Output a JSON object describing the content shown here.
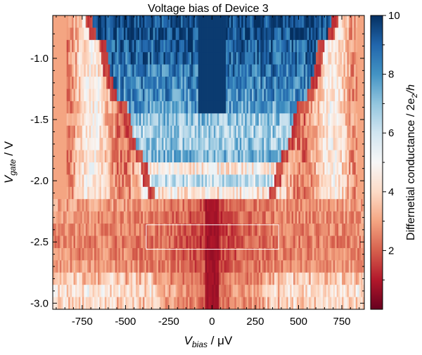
{
  "chart_data": {
    "type": "heatmap",
    "title": "Voltage bias of Device 3",
    "xlabel": {
      "main": "V",
      "sub": "bias",
      "rest": " / μV"
    },
    "ylabel": {
      "main": "V",
      "sub": "gate",
      "rest": " / V"
    },
    "colorbar_label": {
      "pre": "Differnetial conductance / 2e",
      "sub": "2",
      "post": "/h"
    },
    "colormap": "RdBu",
    "colormap_stops": [
      "#67001f",
      "#b2182b",
      "#d6604d",
      "#f4a582",
      "#fddbc7",
      "#f7f7f7",
      "#d1e5f0",
      "#92c5de",
      "#4393c3",
      "#2166ac",
      "#053061"
    ],
    "xlim": [
      -920,
      880
    ],
    "ylim": [
      -3.05,
      -0.65
    ],
    "clim": [
      0,
      10
    ],
    "x_ticks": [
      -750,
      -500,
      -250,
      0,
      250,
      500,
      750
    ],
    "x_tick_labels": [
      "-750",
      "-500",
      "-250",
      "0",
      "250",
      "500",
      "750"
    ],
    "y_ticks": [
      -1.0,
      -1.5,
      -2.0,
      -2.5,
      -3.0
    ],
    "y_tick_labels": [
      "-1.0",
      "-1.5",
      "-2.0",
      "-2.5",
      "-3.0"
    ],
    "c_ticks": [
      2,
      4,
      6,
      8,
      10
    ],
    "c_tick_labels": [
      "2",
      "4",
      "6",
      "8",
      "10"
    ],
    "grid": false,
    "annotation_rectangle": {
      "x": [
        -380,
        385
      ],
      "y": [
        -2.56,
        -2.36
      ]
    },
    "gate_rows": [
      {
        "vgate": -0.7,
        "gap_edge": 720,
        "inner": 9.5
      },
      {
        "vgate": -0.8,
        "gap_edge": 705,
        "inner": 9.3
      },
      {
        "vgate": -0.9,
        "gap_edge": 640,
        "inner": 9.0
      },
      {
        "vgate": -1.0,
        "gap_edge": 630,
        "inner": 8.8
      },
      {
        "vgate": -1.1,
        "gap_edge": 620,
        "inner": 8.6
      },
      {
        "vgate": -1.2,
        "gap_edge": 600,
        "inner": 8.4
      },
      {
        "vgate": -1.3,
        "gap_edge": 580,
        "inner": 8.2
      },
      {
        "vgate": -1.4,
        "gap_edge": 520,
        "inner": 7.8
      },
      {
        "vgate": -1.5,
        "gap_edge": 500,
        "inner": 7.0
      },
      {
        "vgate": -1.6,
        "gap_edge": 490,
        "inner": 6.6
      },
      {
        "vgate": -1.7,
        "gap_edge": 470,
        "inner": 6.8
      },
      {
        "vgate": -1.8,
        "gap_edge": 430,
        "inner": 7.2
      },
      {
        "vgate": -1.9,
        "gap_edge": 400,
        "inner": 4.6
      },
      {
        "vgate": -2.0,
        "gap_edge": 390,
        "inner": 6.0
      },
      {
        "vgate": -2.1,
        "gap_edge": 360,
        "inner": 4.4
      },
      {
        "vgate": -2.2,
        "gap_edge": 0,
        "inner": 1.6
      },
      {
        "vgate": -2.3,
        "gap_edge": 0,
        "inner": 1.4
      },
      {
        "vgate": -2.4,
        "gap_edge": 0,
        "inner": 1.3
      },
      {
        "vgate": -2.5,
        "gap_edge": 0,
        "inner": 1.2
      },
      {
        "vgate": -2.6,
        "gap_edge": 0,
        "inner": 1.3
      },
      {
        "vgate": -2.7,
        "gap_edge": 0,
        "inner": 1.5
      },
      {
        "vgate": -2.8,
        "gap_edge": 0,
        "inner": 1.8
      },
      {
        "vgate": -2.9,
        "gap_edge": 0,
        "inner": 2.3
      },
      {
        "vgate": -3.0,
        "gap_edge": 0,
        "inner": 2.0
      }
    ]
  }
}
